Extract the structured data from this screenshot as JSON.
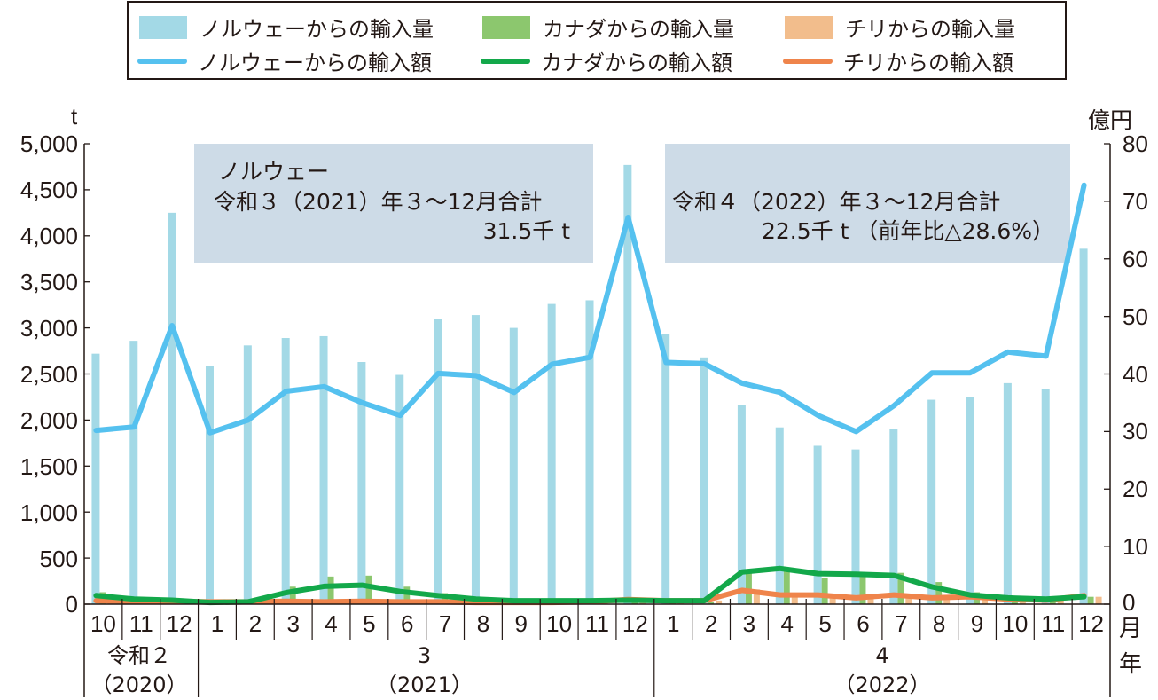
{
  "legend": {
    "items": [
      {
        "label": "ノルウェーからの輸入量",
        "kind": "bar",
        "color": "#a3d9e6"
      },
      {
        "label": "カナダからの輸入量",
        "kind": "bar",
        "color": "#8cc76e"
      },
      {
        "label": "チリからの輸入量",
        "kind": "bar",
        "color": "#f2bd8c"
      },
      {
        "label": "ノルウェーからの輸入額",
        "kind": "line",
        "color": "#55c1ef"
      },
      {
        "label": "カナダからの輸入額",
        "kind": "line",
        "color": "#13a84a"
      },
      {
        "label": "チリからの輸入額",
        "kind": "line",
        "color": "#ef844b"
      }
    ]
  },
  "axes": {
    "left_unit": "t",
    "right_unit": "億円",
    "left_ticks": [
      "5,000",
      "4,500",
      "4,000",
      "3,500",
      "3,000",
      "2,500",
      "2,000",
      "1,500",
      "1,000",
      "500",
      "0"
    ],
    "right_ticks": [
      "80",
      "70",
      "60",
      "50",
      "40",
      "30",
      "20",
      "10",
      "0"
    ],
    "month_unit": "月",
    "year_unit": "年"
  },
  "annotations": {
    "box1": {
      "line1": "ノルウェー",
      "line2": "令和３（2021）年３～12月合計",
      "line3": "31.5千 t"
    },
    "box2": {
      "line1": "令和４（2022）年３～12月合計",
      "line2": "22.5千 t （前年比△28.6%）"
    }
  },
  "x_axis": {
    "months": [
      "10",
      "11",
      "12",
      "1",
      "2",
      "3",
      "4",
      "5",
      "6",
      "7",
      "8",
      "9",
      "10",
      "11",
      "12",
      "1",
      "2",
      "3",
      "4",
      "5",
      "6",
      "7",
      "8",
      "9",
      "10",
      "11",
      "12"
    ],
    "years": [
      {
        "label": "令和２",
        "sub": "（2020）"
      },
      {
        "label": "3",
        "sub": "（2021）"
      },
      {
        "label": "4",
        "sub": "（2022）"
      }
    ]
  },
  "chart_data": {
    "type": "bar+line (dual axis)",
    "title": "",
    "categories": [
      "2020-10",
      "2020-11",
      "2020-12",
      "2021-01",
      "2021-02",
      "2021-03",
      "2021-04",
      "2021-05",
      "2021-06",
      "2021-07",
      "2021-08",
      "2021-09",
      "2021-10",
      "2021-11",
      "2021-12",
      "2022-01",
      "2022-02",
      "2022-03",
      "2022-04",
      "2022-05",
      "2022-06",
      "2022-07",
      "2022-08",
      "2022-09",
      "2022-10",
      "2022-11",
      "2022-12"
    ],
    "left_axis": {
      "label": "t",
      "range": [
        0,
        5000
      ],
      "step": 500
    },
    "right_axis": {
      "label": "億円",
      "range": [
        0,
        80
      ],
      "step": 10
    },
    "series": [
      {
        "name": "ノルウェーからの輸入量",
        "type": "bar",
        "axis": "left",
        "color": "#a3d9e6",
        "values": [
          2720,
          2860,
          4250,
          2590,
          2810,
          2890,
          2910,
          2630,
          2490,
          3100,
          3140,
          3000,
          3260,
          3300,
          4770,
          2930,
          2680,
          2160,
          1920,
          1720,
          1680,
          1900,
          2220,
          2250,
          2400,
          2340,
          3860
        ]
      },
      {
        "name": "カナダからの輸入量",
        "type": "bar",
        "axis": "left",
        "color": "#8cc76e",
        "values": [
          130,
          40,
          30,
          10,
          20,
          190,
          300,
          310,
          190,
          120,
          50,
          30,
          20,
          20,
          30,
          20,
          20,
          360,
          360,
          280,
          320,
          340,
          240,
          130,
          60,
          30,
          80
        ]
      },
      {
        "name": "チリからの輸入量",
        "type": "bar",
        "axis": "left",
        "color": "#f2bd8c",
        "values": [
          30,
          20,
          20,
          10,
          10,
          40,
          40,
          40,
          40,
          30,
          30,
          20,
          30,
          40,
          70,
          40,
          40,
          160,
          120,
          110,
          100,
          110,
          90,
          80,
          60,
          40,
          80
        ]
      },
      {
        "name": "ノルウェーからの輸入額",
        "type": "line",
        "axis": "right",
        "color": "#55c1ef",
        "values": [
          30.2,
          30.8,
          48.4,
          29.8,
          32.0,
          37.0,
          37.8,
          35.0,
          32.8,
          40.1,
          39.7,
          36.8,
          41.7,
          42.9,
          67.2,
          42.0,
          41.8,
          38.4,
          36.8,
          32.8,
          30.0,
          34.5,
          40.2,
          40.2,
          43.8,
          43.1,
          72.8
        ]
      },
      {
        "name": "カナダからの輸入額",
        "type": "line",
        "axis": "right",
        "color": "#13a84a",
        "values": [
          1.5,
          0.9,
          0.7,
          0.3,
          0.4,
          2.0,
          3.1,
          3.3,
          2.2,
          1.5,
          0.9,
          0.6,
          0.6,
          0.6,
          0.7,
          0.6,
          0.6,
          5.6,
          6.2,
          5.3,
          5.2,
          5.0,
          3.0,
          1.6,
          1.1,
          0.9,
          1.3
        ]
      },
      {
        "name": "チリからの輸入額",
        "type": "line",
        "axis": "right",
        "color": "#ef844b",
        "values": [
          0.6,
          0.5,
          0.5,
          0.4,
          0.4,
          0.5,
          0.4,
          0.5,
          0.4,
          0.4,
          0.3,
          0.3,
          0.3,
          0.4,
          0.8,
          0.6,
          0.6,
          2.4,
          1.6,
          1.6,
          1.1,
          1.6,
          1.1,
          1.3,
          0.9,
          0.7,
          1.5
        ]
      }
    ],
    "annotations": [
      "ノルウェー 令和３（2021）年３～12月合計 31.5千 t",
      "令和４（2022）年３～12月合計 22.5千 t （前年比△28.6%）"
    ],
    "legend_position": "top",
    "grid": false
  }
}
